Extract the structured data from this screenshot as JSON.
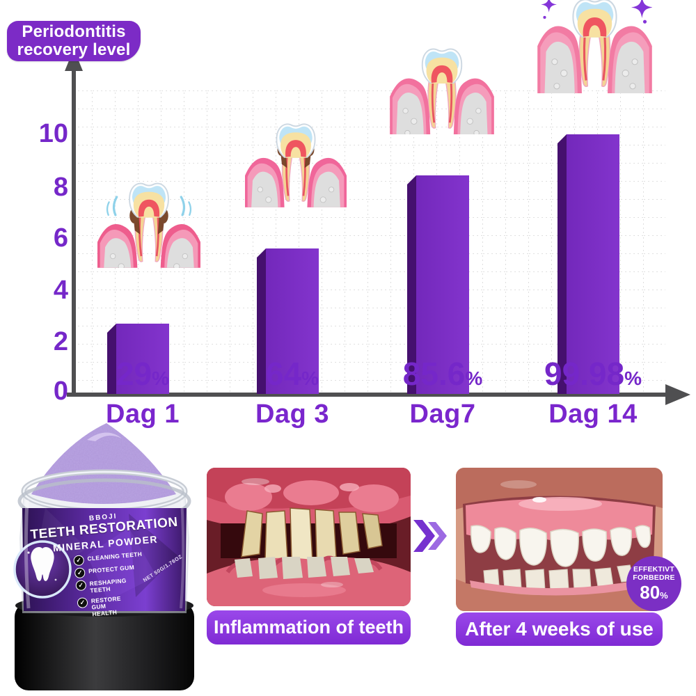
{
  "page_title": "Periodontitis recovery level",
  "chart": {
    "badge_line1": "Periodontitis",
    "badge_line2": "recovery level"
  },
  "chart_data": {
    "type": "bar",
    "title": "Periodontitis recovery level",
    "categories": [
      "Dag 1",
      "Dag 3",
      "Dag7",
      "Dag 14"
    ],
    "values": [
      29,
      64,
      85.6,
      99.98
    ],
    "value_labels": [
      "29%",
      "64%",
      "85.6%",
      "99.98%"
    ],
    "value_label_numbers": [
      "29",
      "64",
      "85.6",
      "99.98"
    ],
    "percent_sign": "%",
    "ylabel": "",
    "xlabel": "",
    "ylim": [
      0,
      10
    ],
    "y_ticks": [
      0,
      2,
      4,
      6,
      8,
      10
    ],
    "y_tick_labels_desc": [
      "10",
      "8",
      "6",
      "4",
      "2",
      "0"
    ],
    "grid": "dotted",
    "legend": "none",
    "bar_color": "#7d2fc4",
    "bar_side_color": "#45106e",
    "label_color": "#7527c9",
    "axis_color": "#4f4f51",
    "tooth_stage_icons": [
      "tooth-severe-periodontitis-icon",
      "tooth-moderate-periodontitis-icon",
      "tooth-mild-periodontitis-icon",
      "tooth-healthy-sparkling-icon"
    ]
  },
  "product": {
    "brand": "BBOJI",
    "name_line1": "TEETH RESTORATION",
    "name_line2": "MINERAL POWDER",
    "features": [
      "CLEANING TEETH",
      "PROTECT GUM",
      "RESHAPING TEETH",
      "RESTORE GUM HEALTH"
    ],
    "net_weight": "NET 50G/1.76OZ",
    "check_glyph": "✓"
  },
  "comparison": {
    "before_caption": "Inflammation of teeth",
    "after_caption": "After 4 weeks of use",
    "badge_line1": "EFFEKTIVT",
    "badge_line2": "FORBEDRE",
    "badge_value": "80",
    "badge_percent_sign": "%"
  },
  "colors": {
    "accent_purple": "#7c2bc6",
    "caption_purple": "#8a35e0",
    "chevron_dark": "#7631cf",
    "chevron_light": "#9c6ae2"
  }
}
